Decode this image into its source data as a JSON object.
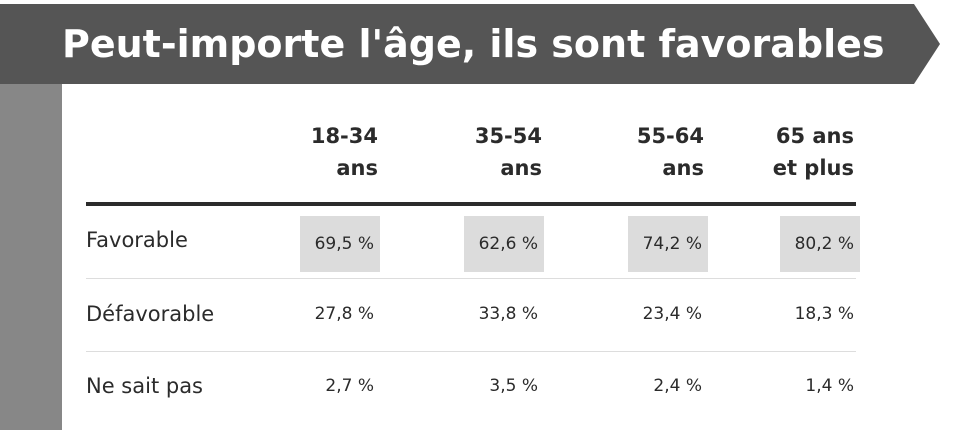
{
  "banner": {
    "title": "Peut-importe l'âge, ils sont favorables",
    "background_color": "#555555",
    "text_color": "#ffffff"
  },
  "table": {
    "columns": [
      {
        "line1": "18-34",
        "line2": "ans"
      },
      {
        "line1": "35-54",
        "line2": "ans"
      },
      {
        "line1": "55-64",
        "line2": "ans"
      },
      {
        "line1": "65 ans",
        "line2": "et plus"
      }
    ],
    "rows": [
      {
        "label": "Favorable",
        "values": [
          "69,5 %",
          "62,6 %",
          "74,2 %",
          "80,2 %"
        ],
        "highlighted": true
      },
      {
        "label": "Défavorable",
        "values": [
          "27,8 %",
          "33,8 %",
          "23,4 %",
          "18,3 %"
        ],
        "highlighted": false
      },
      {
        "label": "Ne sait pas",
        "values": [
          "2,7 %",
          "3,5 %",
          "2,4 %",
          "1,4 %"
        ],
        "highlighted": false
      }
    ],
    "highlight_color": "#dcdcdc"
  }
}
